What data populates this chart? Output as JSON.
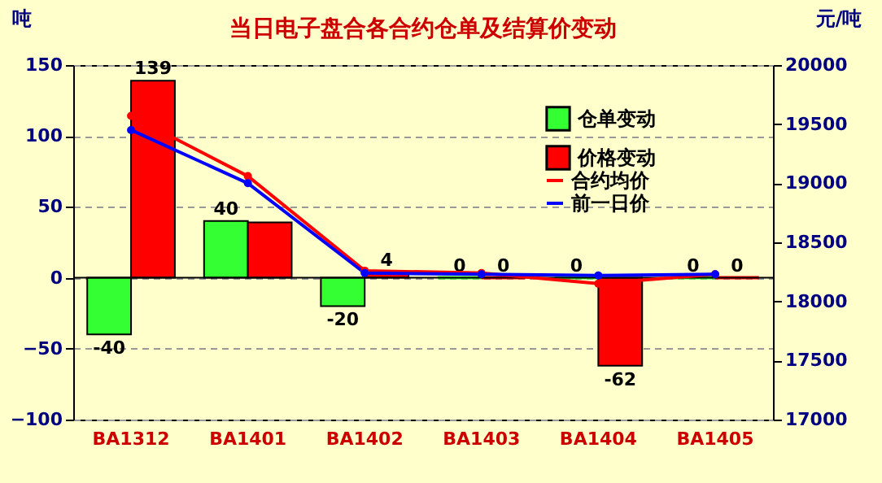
{
  "chart_data": {
    "type": "bar",
    "title": "当日电子盘合各合约仓单及结算价变动",
    "ylabel": "吨",
    "y2label": "元/吨",
    "categories": [
      "BA1312",
      "BA1401",
      "BA1402",
      "BA1403",
      "BA1404",
      "BA1405"
    ],
    "series": [
      {
        "name": "仓单变动",
        "color": "#33ff33",
        "values": [
          -40,
          40,
          -20,
          0,
          0,
          0
        ],
        "value_labels": [
          "-40",
          "40",
          "-20",
          "0",
          "0",
          "0"
        ]
      },
      {
        "name": "价格变动",
        "color": "#ff0000",
        "values": [
          139,
          39,
          4,
          0,
          -62,
          0
        ],
        "value_labels": [
          "139",
          null,
          "4",
          "0",
          "-62",
          "0"
        ]
      },
      {
        "name": "合约均价",
        "type": "line",
        "axis": "y2",
        "color": "#ff0000",
        "values": [
          19570,
          19060,
          18260,
          18240,
          18150,
          18230
        ]
      },
      {
        "name": "前一日价",
        "type": "line",
        "axis": "y2",
        "color": "#0000ff",
        "values": [
          19450,
          19000,
          18240,
          18230,
          18220,
          18230
        ]
      }
    ],
    "ylim": [
      -100,
      150
    ],
    "yticks": [
      -100,
      -50,
      0,
      50,
      100,
      150
    ],
    "y2lim": [
      17000,
      20000
    ],
    "y2ticks": [
      17000,
      17500,
      18000,
      18500,
      19000,
      19500,
      20000
    ],
    "grid": "y",
    "legend": "top right",
    "marker": "circle"
  }
}
